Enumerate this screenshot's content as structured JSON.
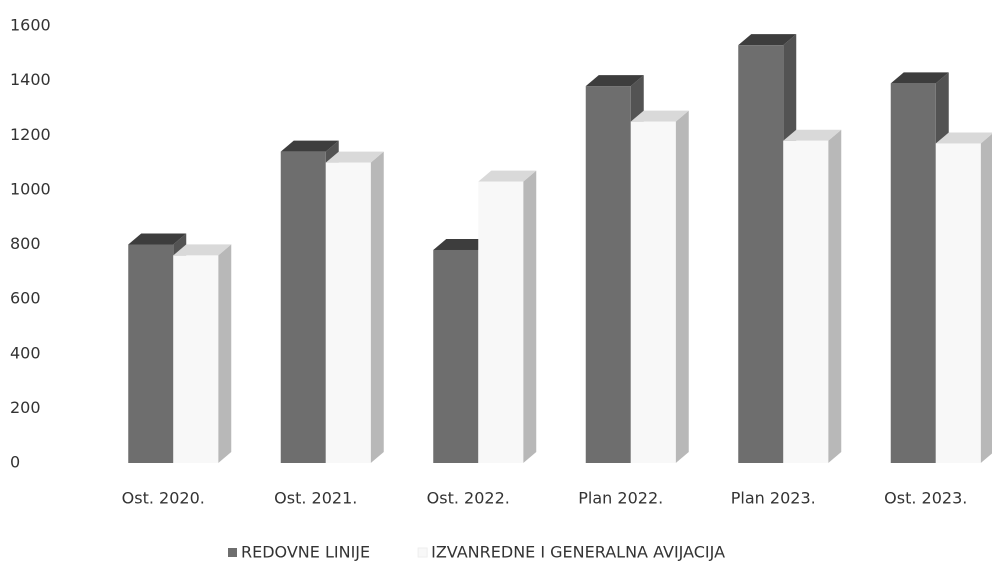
{
  "chart_data": {
    "type": "bar3d",
    "categories": [
      "Ost. 2020.",
      "Ost. 2021.",
      "Ost. 2022.",
      "Plan 2022.",
      "Plan 2023.",
      "Ost. 2023."
    ],
    "series": [
      {
        "name": "REDOVNE LINIJE",
        "color": "#6e6e6e",
        "values": [
          800,
          1140,
          780,
          1380,
          1530,
          1390
        ]
      },
      {
        "name": "IZVANREDNE I GENERALNA AVIJACIJA",
        "color": "#f8f8f8",
        "values": [
          760,
          1100,
          1030,
          1250,
          1180,
          1170
        ]
      }
    ],
    "ylim": [
      0,
      1600
    ],
    "yticks": [
      0,
      200,
      400,
      600,
      800,
      1000,
      1200,
      1400,
      1600
    ],
    "legend": "bottom"
  }
}
